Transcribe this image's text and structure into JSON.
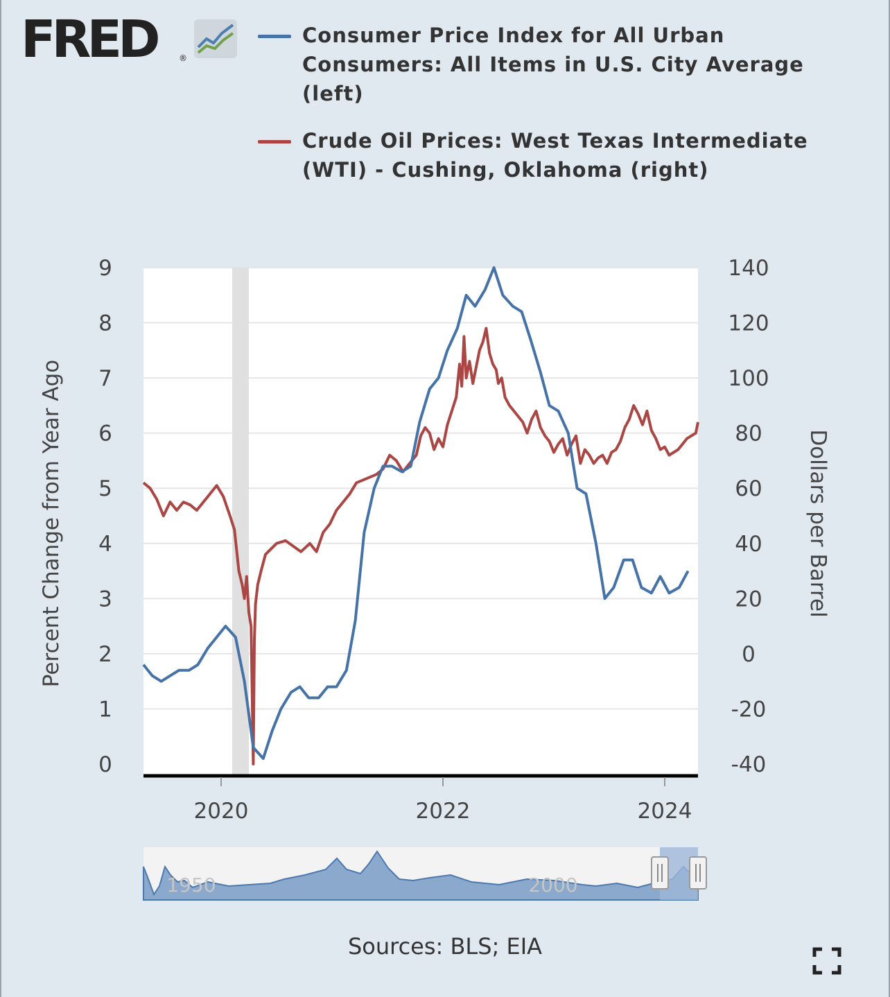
{
  "brand": {
    "logo_text": "FRED",
    "registered_mark": "®",
    "logo_icon": "fred-line-graph-icon"
  },
  "legend": [
    {
      "label": "Consumer Price Index for All Urban Consumers: All Items in U.S. City Average (left)",
      "color": "#4572a7"
    },
    {
      "label": "Crude Oil Prices: West Texas Intermediate (WTI) - Cushing, Oklahoma (right)",
      "color": "#aa4643"
    }
  ],
  "sources": "Sources: BLS; EIA",
  "fullscreen_icon": "fullscreen-icon",
  "chart_data": {
    "type": "line",
    "left_axis": {
      "label": "Percent Change from Year Ago",
      "range": [
        0,
        9
      ],
      "ticks": [
        0,
        1,
        2,
        3,
        4,
        5,
        6,
        7,
        8,
        9
      ]
    },
    "right_axis": {
      "label": "Dollars per Barrel",
      "range": [
        -40,
        140
      ],
      "ticks": [
        -40,
        -20,
        0,
        20,
        40,
        60,
        80,
        100,
        120,
        140
      ]
    },
    "x_axis": {
      "range": [
        2019.3,
        2024.3
      ],
      "ticks": [
        2020,
        2022,
        2024
      ]
    },
    "recession": [
      2020.1,
      2020.25
    ],
    "grid": true,
    "series": [
      {
        "name": "Consumer Price Index for All Urban Consumers: All Items in U.S. City Average (left)",
        "axis": "left",
        "color": "#4572a7",
        "x": [
          2019.3,
          2019.38,
          2019.46,
          2019.54,
          2019.62,
          2019.71,
          2019.79,
          2019.88,
          2019.96,
          2020.04,
          2020.13,
          2020.21,
          2020.29,
          2020.38,
          2020.46,
          2020.54,
          2020.63,
          2020.71,
          2020.79,
          2020.88,
          2020.96,
          2021.04,
          2021.13,
          2021.21,
          2021.29,
          2021.38,
          2021.46,
          2021.54,
          2021.63,
          2021.71,
          2021.79,
          2021.88,
          2021.96,
          2022.04,
          2022.13,
          2022.21,
          2022.29,
          2022.38,
          2022.46,
          2022.54,
          2022.63,
          2022.71,
          2022.79,
          2022.88,
          2022.96,
          2023.04,
          2023.13,
          2023.21,
          2023.29,
          2023.38,
          2023.46,
          2023.54,
          2023.63,
          2023.71,
          2023.79,
          2023.88,
          2023.96,
          2024.04,
          2024.13,
          2024.21
        ],
        "values": [
          1.8,
          1.6,
          1.5,
          1.6,
          1.7,
          1.7,
          1.8,
          2.1,
          2.3,
          2.5,
          2.3,
          1.5,
          0.3,
          0.1,
          0.6,
          1.0,
          1.3,
          1.4,
          1.2,
          1.2,
          1.4,
          1.4,
          1.7,
          2.6,
          4.2,
          5.0,
          5.4,
          5.4,
          5.3,
          5.4,
          6.2,
          6.8,
          7.0,
          7.5,
          7.9,
          8.5,
          8.3,
          8.6,
          9.0,
          8.5,
          8.3,
          8.2,
          7.7,
          7.1,
          6.5,
          6.4,
          6.0,
          5.0,
          4.9,
          4.0,
          3.0,
          3.2,
          3.7,
          3.7,
          3.2,
          3.1,
          3.4,
          3.1,
          3.2,
          3.5
        ]
      },
      {
        "name": "Crude Oil Prices: West Texas Intermediate (WTI) - Cushing, Oklahoma (right)",
        "axis": "right",
        "color": "#aa4643",
        "x": [
          2019.3,
          2019.36,
          2019.42,
          2019.48,
          2019.54,
          2019.6,
          2019.66,
          2019.72,
          2019.78,
          2019.84,
          2019.9,
          2019.96,
          2020.02,
          2020.08,
          2020.12,
          2020.16,
          2020.19,
          2020.21,
          2020.23,
          2020.25,
          2020.27,
          2020.29,
          2020.3,
          2020.31,
          2020.33,
          2020.36,
          2020.4,
          2020.45,
          2020.5,
          2020.58,
          2020.65,
          2020.72,
          2020.8,
          2020.86,
          2020.92,
          2020.98,
          2021.04,
          2021.1,
          2021.16,
          2021.22,
          2021.28,
          2021.34,
          2021.4,
          2021.46,
          2021.52,
          2021.58,
          2021.64,
          2021.7,
          2021.76,
          2021.8,
          2021.84,
          2021.88,
          2021.92,
          2021.96,
          2022.0,
          2022.04,
          2022.08,
          2022.12,
          2022.15,
          2022.17,
          2022.19,
          2022.21,
          2022.24,
          2022.27,
          2022.3,
          2022.33,
          2022.36,
          2022.39,
          2022.42,
          2022.45,
          2022.48,
          2022.5,
          2022.53,
          2022.56,
          2022.6,
          2022.64,
          2022.68,
          2022.72,
          2022.76,
          2022.8,
          2022.84,
          2022.88,
          2022.92,
          2022.96,
          2023.0,
          2023.04,
          2023.08,
          2023.12,
          2023.16,
          2023.2,
          2023.24,
          2023.28,
          2023.32,
          2023.36,
          2023.4,
          2023.44,
          2023.48,
          2023.52,
          2023.56,
          2023.6,
          2023.64,
          2023.68,
          2023.72,
          2023.76,
          2023.8,
          2023.84,
          2023.88,
          2023.92,
          2023.96,
          2024.0,
          2024.04,
          2024.08,
          2024.12,
          2024.16,
          2024.2,
          2024.24,
          2024.28,
          2024.3
        ],
        "values": [
          62,
          60,
          56,
          50,
          55,
          52,
          55,
          54,
          52,
          55,
          58,
          61,
          57,
          50,
          45,
          30,
          25,
          20,
          28,
          15,
          10,
          -40,
          5,
          18,
          25,
          30,
          36,
          38,
          40,
          41,
          39,
          37,
          40,
          37,
          44,
          47,
          52,
          55,
          58,
          62,
          63,
          64,
          65,
          67,
          72,
          70,
          66,
          69,
          72,
          79,
          82,
          80,
          74,
          78,
          75,
          83,
          88,
          93,
          105,
          97,
          115,
          100,
          106,
          98,
          104,
          110,
          113,
          118,
          109,
          105,
          103,
          98,
          100,
          93,
          90,
          88,
          86,
          84,
          80,
          85,
          88,
          82,
          79,
          77,
          73,
          76,
          78,
          72,
          76,
          79,
          69,
          74,
          72,
          69,
          71,
          72,
          69,
          73,
          74,
          77,
          82,
          85,
          90,
          87,
          83,
          88,
          81,
          78,
          74,
          75,
          72,
          73,
          74,
          76,
          78,
          79,
          80,
          84
        ]
      }
    ]
  }
}
